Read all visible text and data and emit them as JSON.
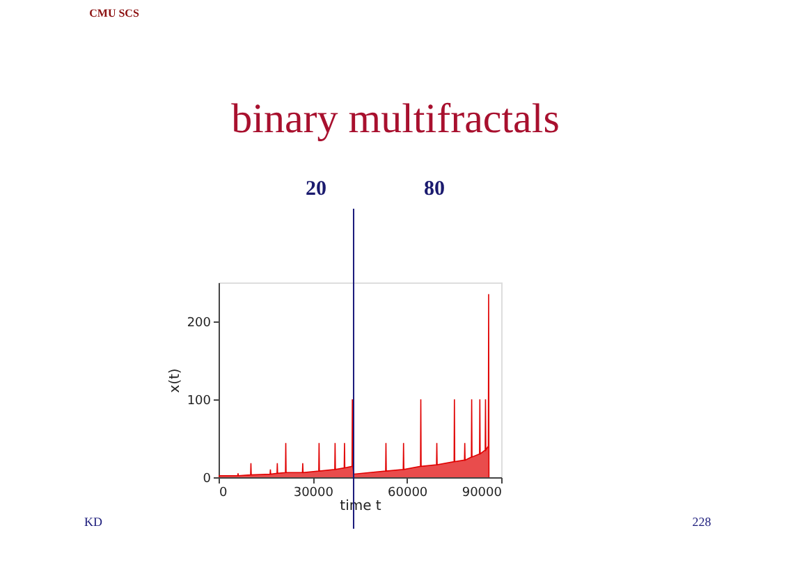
{
  "chart_data": {
    "type": "area",
    "title": "binary multifractals",
    "xlabel": "time t",
    "ylabel": "x(t)",
    "x": [
      0,
      6100,
      6200,
      6300,
      10200,
      10300,
      10400,
      16400,
      16500,
      16600,
      18600,
      18700,
      18800,
      21300,
      21400,
      21500,
      26700,
      26800,
      26900,
      31900,
      32000,
      32100,
      37000,
      37100,
      37200,
      40000,
      40100,
      40200,
      42500,
      42600,
      42700,
      43100,
      53200,
      53300,
      53400,
      58800,
      58900,
      59000,
      64300,
      64400,
      64500,
      69400,
      69500,
      69600,
      75000,
      75100,
      75200,
      78300,
      78400,
      78500,
      80500,
      80600,
      80700,
      83100,
      83200,
      83300,
      84900,
      85000,
      85100,
      85900,
      86000,
      86100
    ],
    "series": [
      {
        "color": "#e00000",
        "values": [
          2,
          2,
          5,
          2,
          3,
          18,
          3,
          4,
          10,
          4,
          5,
          18,
          5,
          6,
          44,
          6,
          6,
          18,
          6,
          8,
          44,
          8,
          10,
          44,
          10,
          12,
          44,
          12,
          14,
          100,
          14,
          4,
          8,
          44,
          8,
          10,
          44,
          10,
          14,
          100,
          14,
          16,
          44,
          16,
          20,
          100,
          20,
          22,
          44,
          22,
          26,
          100,
          26,
          30,
          100,
          30,
          35,
          100,
          35,
          40,
          235,
          0
        ]
      }
    ],
    "xlim": [
      0,
      90000
    ],
    "ylim": [
      0,
      250
    ],
    "xticks": [
      0,
      30000,
      60000,
      90000
    ],
    "yticks": [
      0,
      100,
      200
    ],
    "grid": false,
    "ref_lines": [
      {
        "axis": "x",
        "value": 43000,
        "color": "#1a1a7a"
      }
    ],
    "annotations": [
      "20",
      "80",
      "CMU SCS",
      "KD",
      "228"
    ]
  }
}
